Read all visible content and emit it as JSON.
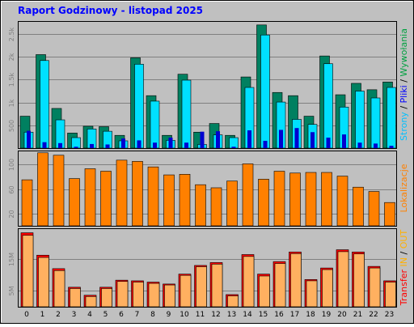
{
  "page": {
    "background": "#ffffff",
    "panel_background": "#c0c0c0",
    "border": "#000000"
  },
  "title": "Raport Godzinowy -  listopad 2025",
  "colors": {
    "title": "#0000ff",
    "strony": "#00c0ff",
    "pliki": "#0000ff",
    "wywolania": "#008040",
    "lokalizacje": "#ff8000",
    "in": "#ff0000",
    "out": "#ffb000",
    "label_dark": "#00a040"
  },
  "chart_data": [
    {
      "type": "bar",
      "id": "requests",
      "categories": [
        "0",
        "1",
        "2",
        "3",
        "4",
        "5",
        "6",
        "7",
        "8",
        "9",
        "10",
        "11",
        "12",
        "13",
        "14",
        "15",
        "16",
        "17",
        "18",
        "19",
        "20",
        "21",
        "22",
        "23"
      ],
      "ylim": [
        0,
        2750
      ],
      "ticks": [
        "500",
        "1k",
        "1.5k",
        "2k",
        "2.5k"
      ],
      "tick_values": [
        500,
        1000,
        1500,
        2000,
        2500
      ],
      "series": [
        {
          "name": "Wywołania",
          "color": "#008060",
          "values": [
            700,
            2050,
            870,
            330,
            480,
            470,
            280,
            1980,
            1150,
            280,
            1620,
            350,
            540,
            280,
            1560,
            2700,
            1220,
            1150,
            700,
            2020,
            1170,
            1420,
            1280,
            1450
          ]
        },
        {
          "name": "Strony",
          "color": "#00e0ff",
          "values": [
            350,
            1920,
            620,
            230,
            420,
            370,
            160,
            1840,
            1030,
            170,
            1490,
            80,
            290,
            230,
            1330,
            2480,
            1010,
            630,
            520,
            1850,
            900,
            1250,
            1100,
            1330
          ]
        },
        {
          "name": "Pliki",
          "color": "#0000d0",
          "values": [
            380,
            130,
            110,
            30,
            90,
            80,
            210,
            170,
            120,
            230,
            120,
            360,
            370,
            30,
            390,
            160,
            400,
            440,
            350,
            230,
            300,
            120,
            100,
            50
          ]
        }
      ],
      "ylabel_parts": [
        "Strony",
        " / ",
        "Pliki",
        " / ",
        "Wywołania"
      ]
    },
    {
      "type": "bar",
      "id": "locations",
      "categories": [
        "0",
        "1",
        "2",
        "3",
        "4",
        "5",
        "6",
        "7",
        "8",
        "9",
        "10",
        "11",
        "12",
        "13",
        "14",
        "15",
        "16",
        "17",
        "18",
        "19",
        "20",
        "21",
        "22",
        "23"
      ],
      "ylim": [
        0,
        120
      ],
      "ticks": [
        "20",
        "60",
        "100"
      ],
      "tick_values": [
        20,
        60,
        100
      ],
      "series": [
        {
          "name": "Lokalizacje",
          "color": "#ff8000",
          "values": [
            75,
            119,
            115,
            77,
            93,
            89,
            107,
            105,
            96,
            83,
            84,
            67,
            62,
            73,
            101,
            76,
            89,
            86,
            87,
            87,
            81,
            63,
            56,
            38
          ]
        }
      ],
      "ylabel": "Lokalizacje"
    },
    {
      "type": "bar",
      "id": "transfer",
      "categories": [
        "0",
        "1",
        "2",
        "3",
        "4",
        "5",
        "6",
        "7",
        "8",
        "9",
        "10",
        "11",
        "12",
        "13",
        "14",
        "15",
        "16",
        "17",
        "18",
        "19",
        "20",
        "21",
        "22",
        "23"
      ],
      "ylim": [
        0,
        24
      ],
      "ticks": [
        "5M",
        "15M"
      ],
      "tick_values": [
        5,
        15
      ],
      "series": [
        {
          "name": "IN",
          "color": "#ff0000",
          "values": [
            23.1,
            16.1,
            11.9,
            6.1,
            3.6,
            6.1,
            8.3,
            8.1,
            7.7,
            7.1,
            10.2,
            12.9,
            13.8,
            3.8,
            16.3,
            10.2,
            14.1,
            17.1,
            8.5,
            12.1,
            17.8,
            17.1,
            12.6,
            8.1
          ]
        },
        {
          "name": "OUT",
          "color": "#ffb060",
          "values": [
            22.3,
            15.4,
            11.3,
            5.7,
            3.2,
            5.7,
            7.9,
            7.7,
            7.3,
            6.8,
            9.8,
            12.5,
            13.3,
            3.4,
            15.7,
            9.6,
            13.5,
            16.6,
            8.1,
            11.6,
            17.2,
            16.5,
            12.1,
            7.7
          ]
        }
      ],
      "ylabel_parts": [
        "Transfer",
        "  ",
        "IN",
        " / ",
        "OUT"
      ]
    }
  ]
}
